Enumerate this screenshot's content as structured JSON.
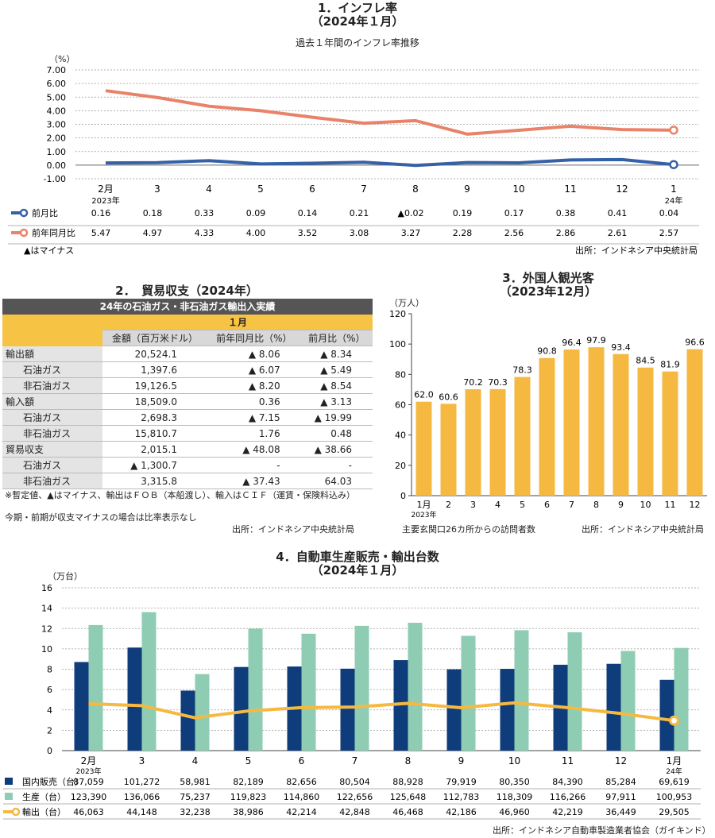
{
  "sec1": {
    "title": "1．インフレ率",
    "subtitle": "（2024年１月）",
    "caption": "過去１年間のインフレ率推移",
    "unit": "（%）",
    "legend_note": "▲はマイナス",
    "source": "出所：インドネシア中央統計局"
  },
  "sec2": {
    "title": "2．　貿易収支（2024年）",
    "table_header": "24年の石油ガス・非石油ガス輸出入実績",
    "month_header": "１月",
    "columns": [
      "金額（百万米ドル）",
      "前年同月比（%）",
      "前月比（%）"
    ],
    "rows": [
      {
        "label": "輸出額",
        "indent": false,
        "amount": "20,524.1",
        "yoy": "▲ 8.06",
        "mom": "▲ 8.34"
      },
      {
        "label": "石油ガス",
        "indent": true,
        "amount": "1,397.6",
        "yoy": "▲ 6.07",
        "mom": "▲ 5.49"
      },
      {
        "label": "非石油ガス",
        "indent": true,
        "amount": "19,126.5",
        "yoy": "▲ 8.20",
        "mom": "▲ 8.54"
      },
      {
        "label": "輸入額",
        "indent": false,
        "amount": "18,509.0",
        "yoy": "0.36",
        "mom": "▲ 3.13"
      },
      {
        "label": "石油ガス",
        "indent": true,
        "amount": "2,698.3",
        "yoy": "▲ 7.15",
        "mom": "▲ 19.99"
      },
      {
        "label": "非石油ガス",
        "indent": true,
        "amount": "15,810.7",
        "yoy": "1.76",
        "mom": "0.48"
      },
      {
        "label": "貿易収支",
        "indent": false,
        "amount": "2,015.1",
        "yoy": "▲ 48.08",
        "mom": "▲ 38.66"
      },
      {
        "label": "石油ガス",
        "indent": true,
        "amount": "▲ 1,300.7",
        "yoy": "-",
        "mom": "-"
      },
      {
        "label": "非石油ガス",
        "indent": true,
        "amount": "3,315.8",
        "yoy": "▲ 37.43",
        "mom": "64.03"
      }
    ],
    "note1": "※暫定値、▲はマイナス、輸出はＦＯＢ（本船渡し）、輸入はＣＩＦ（運賃・保険料込み）",
    "note2": "今期・前期が収支マイナスの場合は比率表示なし",
    "source": "出所：インドネシア中央統計局"
  },
  "sec3": {
    "title": "3．外国人観光客",
    "subtitle": "（2023年12月）",
    "unit": "（万人）",
    "year_label": "2023年",
    "note": "主要玄関口26カ所からの訪問者数",
    "source": "出所：インドネシア中央統計局"
  },
  "sec4": {
    "title": "4．自動車生産販売・輸出台数",
    "subtitle": "（2024年１月）",
    "unit": "（万台）",
    "source": "出所：インドネシア自動車製造業者協会（ガイキンド）"
  },
  "chart_data": [
    {
      "type": "line",
      "title": "1．インフレ率",
      "categories": [
        "2月",
        "3",
        "4",
        "5",
        "6",
        "7",
        "8",
        "9",
        "10",
        "11",
        "12",
        "1"
      ],
      "category_sublabels": {
        "0": "2023年",
        "11": "24年"
      },
      "ylim": [
        -1,
        7
      ],
      "yticks": [
        "-1.00",
        "0.00",
        "1.00",
        "2.00",
        "3.00",
        "4.00",
        "5.00",
        "6.00",
        "7.00"
      ],
      "series": [
        {
          "name": "前月比",
          "color": "#3561a8",
          "values": [
            0.16,
            0.18,
            0.33,
            0.09,
            0.14,
            0.21,
            -0.02,
            0.19,
            0.17,
            0.38,
            0.41,
            0.04
          ],
          "labels": [
            "0.16",
            "0.18",
            "0.33",
            "0.09",
            "0.14",
            "0.21",
            "▲0.02",
            "0.19",
            "0.17",
            "0.38",
            "0.41",
            "0.04"
          ]
        },
        {
          "name": "前年同月比",
          "color": "#e8836a",
          "values": [
            5.47,
            4.97,
            4.33,
            4.0,
            3.52,
            3.08,
            3.27,
            2.28,
            2.56,
            2.86,
            2.61,
            2.57
          ],
          "labels": [
            "5.47",
            "4.97",
            "4.33",
            "4.00",
            "3.52",
            "3.08",
            "3.27",
            "2.28",
            "2.56",
            "2.86",
            "2.61",
            "2.57"
          ]
        }
      ],
      "grid": true
    },
    {
      "type": "bar",
      "title": "3．外国人観光客",
      "categories": [
        "1月",
        "2",
        "3",
        "4",
        "5",
        "6",
        "7",
        "8",
        "9",
        "10",
        "11",
        "12"
      ],
      "values": [
        62.0,
        60.6,
        70.2,
        70.3,
        78.3,
        90.8,
        96.4,
        97.9,
        93.4,
        84.5,
        81.9,
        96.6
      ],
      "value_labels": [
        "62.0",
        "60.6",
        "70.2",
        "70.3",
        "78.3",
        "90.8",
        "96.4",
        "97.9",
        "93.4",
        "84.5",
        "81.9",
        "96.6"
      ],
      "ylim": [
        0,
        120
      ],
      "yticks": [
        "0",
        "20",
        "40",
        "60",
        "80",
        "100",
        "120"
      ],
      "color": "#f5b942"
    },
    {
      "type": "bar",
      "title": "4．自動車生産販売・輸出台数",
      "categories": [
        "2月",
        "3",
        "4",
        "5",
        "6",
        "7",
        "8",
        "9",
        "10",
        "11",
        "12",
        "1月"
      ],
      "category_sublabels": {
        "0": "2023年",
        "11": "24年"
      },
      "ylim": [
        0,
        16
      ],
      "yticks": [
        "0",
        "2",
        "4",
        "6",
        "8",
        "10",
        "12",
        "14",
        "16"
      ],
      "series": [
        {
          "name": "国内販売（台）",
          "type": "bar",
          "color": "#0f3c7a",
          "values": [
            87059,
            101272,
            58981,
            82189,
            82656,
            80504,
            88928,
            79919,
            80350,
            84390,
            85284,
            69619
          ],
          "labels": [
            "87,059",
            "101,272",
            "58,981",
            "82,189",
            "82,656",
            "80,504",
            "88,928",
            "79,919",
            "80,350",
            "84,390",
            "85,284",
            "69,619"
          ]
        },
        {
          "name": "生産（台）",
          "type": "bar",
          "color": "#8ecdb3",
          "values": [
            123390,
            136066,
            75237,
            119823,
            114860,
            122656,
            125648,
            112783,
            118309,
            116266,
            97911,
            100953
          ],
          "labels": [
            "123,390",
            "136,066",
            "75,237",
            "119,823",
            "114,860",
            "122,656",
            "125,648",
            "112,783",
            "118,309",
            "116,266",
            "97,911",
            "100,953"
          ]
        },
        {
          "name": "輸出（台）",
          "type": "line",
          "color": "#f5b942",
          "values": [
            46063,
            44148,
            32238,
            38986,
            42214,
            42848,
            46468,
            42186,
            46960,
            42219,
            36449,
            29505
          ],
          "labels": [
            "46,063",
            "44,148",
            "32,238",
            "38,986",
            "42,214",
            "42,848",
            "46,468",
            "42,186",
            "46,960",
            "42,219",
            "36,449",
            "29,505"
          ]
        }
      ]
    }
  ]
}
